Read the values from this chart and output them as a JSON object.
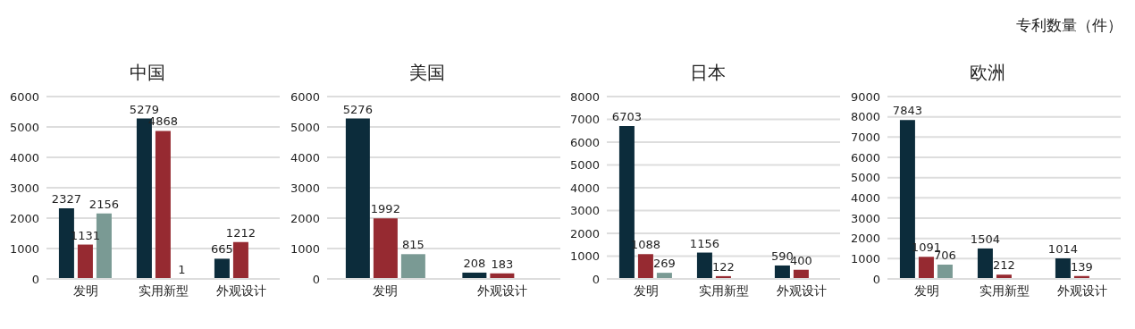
{
  "chart_data": [
    {
      "type": "bar",
      "title": "中国",
      "categories": [
        "发明",
        "实用新型",
        "外观设计"
      ],
      "ylim": [
        0,
        6000
      ],
      "yticks": [
        0,
        1000,
        2000,
        3000,
        4000,
        5000,
        6000
      ],
      "grid": "y",
      "data_labels": true,
      "series": [
        {
          "color": "#0c2c3b",
          "values": [
            2327,
            5279,
            665
          ]
        },
        {
          "color": "#962a31",
          "values": [
            1131,
            4868,
            1212
          ]
        },
        {
          "color": "#7a9a94",
          "colors": [
            "#7a9a94",
            "#962a31",
            "#7a9a94"
          ],
          "values": [
            2156,
            1,
            null
          ]
        }
      ]
    },
    {
      "type": "bar",
      "title": "美国",
      "categories": [
        "发明",
        "外观设计"
      ],
      "ylim": [
        0,
        6000
      ],
      "yticks": [
        0,
        1000,
        2000,
        3000,
        4000,
        5000,
        6000
      ],
      "grid": "y",
      "data_labels": true,
      "series": [
        {
          "color": "#0c2c3b",
          "values": [
            5276,
            208
          ]
        },
        {
          "color": "#962a31",
          "values": [
            1992,
            183
          ]
        },
        {
          "color": "#7a9a94",
          "values": [
            815,
            null
          ]
        }
      ]
    },
    {
      "type": "bar",
      "title": "日本",
      "categories": [
        "发明",
        "实用新型",
        "外观设计"
      ],
      "ylim": [
        0,
        8000
      ],
      "yticks": [
        0,
        1000,
        2000,
        3000,
        4000,
        5000,
        6000,
        7000,
        8000
      ],
      "grid": "y",
      "data_labels": true,
      "series": [
        {
          "color": "#0c2c3b",
          "values": [
            6703,
            1156,
            590
          ]
        },
        {
          "color": "#962a31",
          "values": [
            1088,
            122,
            400
          ]
        },
        {
          "color": "#7a9a94",
          "values": [
            269,
            null,
            null
          ]
        }
      ]
    },
    {
      "type": "bar",
      "title": "欧洲",
      "categories": [
        "发明",
        "实用新型",
        "外观设计"
      ],
      "ylim": [
        0,
        9000
      ],
      "yticks": [
        0,
        1000,
        2000,
        3000,
        4000,
        5000,
        6000,
        7000,
        8000,
        9000
      ],
      "grid": "y",
      "data_labels": true,
      "annotations": [
        "专利数量（件）"
      ],
      "series": [
        {
          "color": "#0c2c3b",
          "values": [
            7843,
            1504,
            1014
          ]
        },
        {
          "color": "#962a31",
          "values": [
            1091,
            212,
            139
          ]
        },
        {
          "color": "#7a9a94",
          "values": [
            706,
            null,
            null
          ]
        }
      ]
    }
  ]
}
